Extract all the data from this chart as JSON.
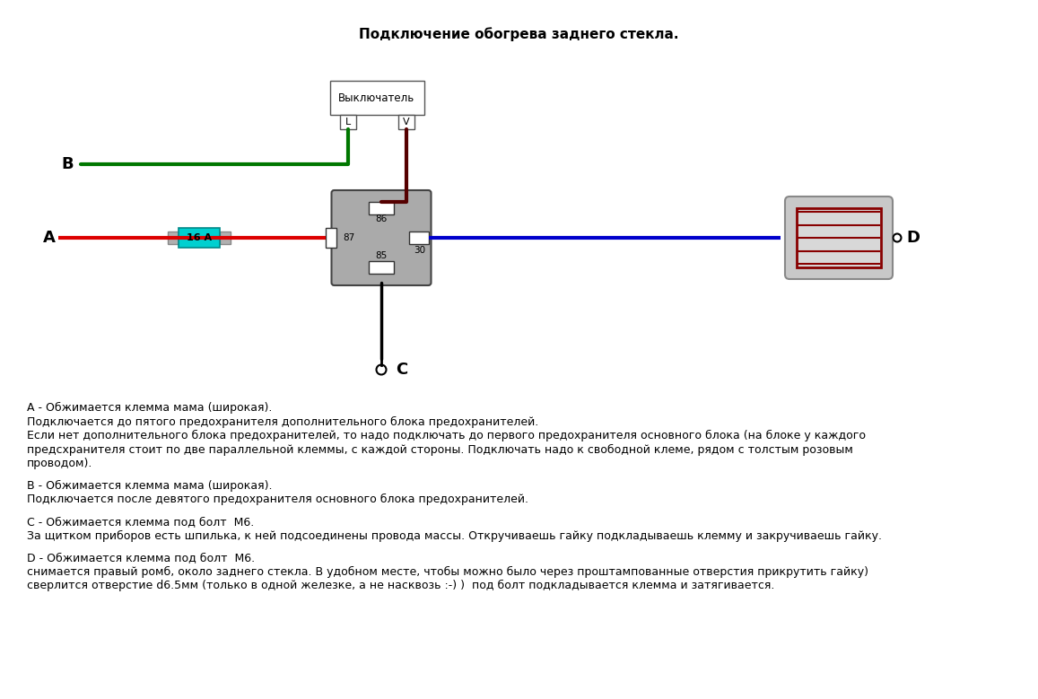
{
  "title": "Подключение обогрева заднего стекла.",
  "bg_color": "#ffffff",
  "wire_red": "#dd0000",
  "wire_green": "#007700",
  "wire_blue": "#0000cc",
  "wire_dark": "#550000",
  "wire_black": "#000000",
  "relay_color": "#aaaaaa",
  "switch_box_color": "#ffffff",
  "fuse_cyan": "#00d0d0",
  "fuse_gray": "#b0b0b0",
  "heater_outer": "#aaaaaa",
  "heater_inner_bg": "#d0d0d0",
  "heater_lines": "#880000",
  "annotation_A": "A - Обжимается клемма мама (широкая).",
  "annotation_A2": "Подключается до пятого предохранителя дополнительного блока предохранителей.",
  "annotation_A3": "Если нет дополнительного блока предохранителей, то надо подключать до первого предохранителя основного блока (на блоке у каждого",
  "annotation_A4": "предсхранителя стоит по две параллельной клеммы, с каждой стороны. Подключать надо к свободной клеме, рядом с толстым розовым",
  "annotation_A5": "проводом).",
  "annotation_B": "B - Обжимается клемма мама (широкая).",
  "annotation_B2": "Подключается после девятого предохранителя основного блока предохранителей.",
  "annotation_C": "C - Обжимается клемма под болт  M6.",
  "annotation_C2": "За щитком приборов есть шпилька, к ней подсоединены провода массы. Откручиваешь гайку подкладываешь клемму и закручиваешь гайку.",
  "annotation_D": "D - Обжимается клемма под болт  M6.",
  "annotation_D2": "снимается правый ромб, около заднего стекла. В удобном месте, чтобы можно было через проштампованные отверстия прикрутить гайку)",
  "annotation_D3": "сверлится отверстие d6.5мм (только в одной железке, а не насквозь :-) )  под болт подкладывается клемма и затягивается."
}
